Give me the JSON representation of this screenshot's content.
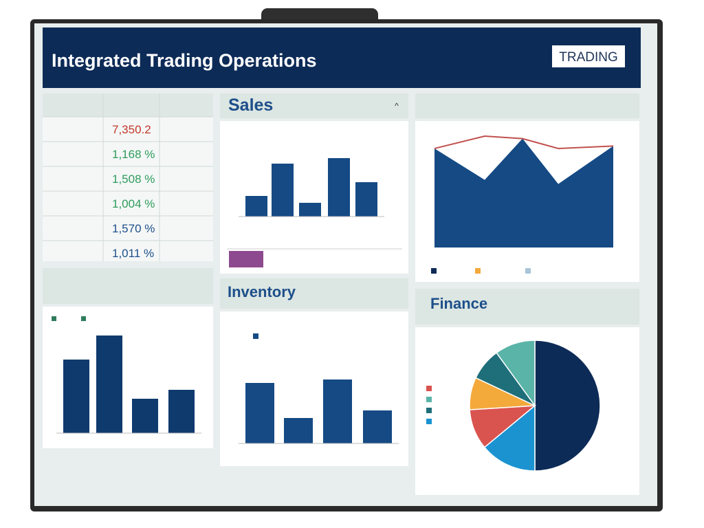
{
  "header": {
    "title": "Integrated Trading Operations",
    "badge": "TRADING"
  },
  "table": {
    "values": [
      "7,350.2",
      "1,168 %",
      "1,508 %",
      "1,004 %",
      "1,570 %",
      "1,011 %"
    ],
    "colors": [
      "#c0392b",
      "#2e9b5b",
      "#2e9b5b",
      "#2e9b5b",
      "#1d4f8a",
      "#1d4f8a"
    ]
  },
  "sales": {
    "title": "Sales",
    "values": [
      30,
      77,
      20,
      85,
      50
    ],
    "color": "#154a84",
    "ylim": [
      0,
      100
    ]
  },
  "trend": {
    "ylim": [
      0,
      140
    ],
    "area": {
      "values": [
        120,
        82,
        132,
        77,
        123
      ],
      "color": "#154a84"
    },
    "line": {
      "values": [
        120,
        135,
        132,
        120,
        123
      ],
      "color": "#c0504d"
    }
  },
  "overview": {
    "values": [
      107,
      142,
      50,
      63
    ],
    "color": "#0f3a6e",
    "ylim": [
      0,
      160
    ]
  },
  "inventory": {
    "title": "Inventory",
    "values": [
      88,
      37,
      93,
      48
    ],
    "color": "#154a84",
    "ylim": [
      0,
      100
    ]
  },
  "finance": {
    "title": "Finance",
    "values": [
      50,
      14,
      10,
      8,
      8,
      10
    ],
    "colors": [
      "#0d2b57",
      "#1b93d1",
      "#d9534f",
      "#f4a93b",
      "#1f6f7a",
      "#5ab4a8"
    ]
  }
}
